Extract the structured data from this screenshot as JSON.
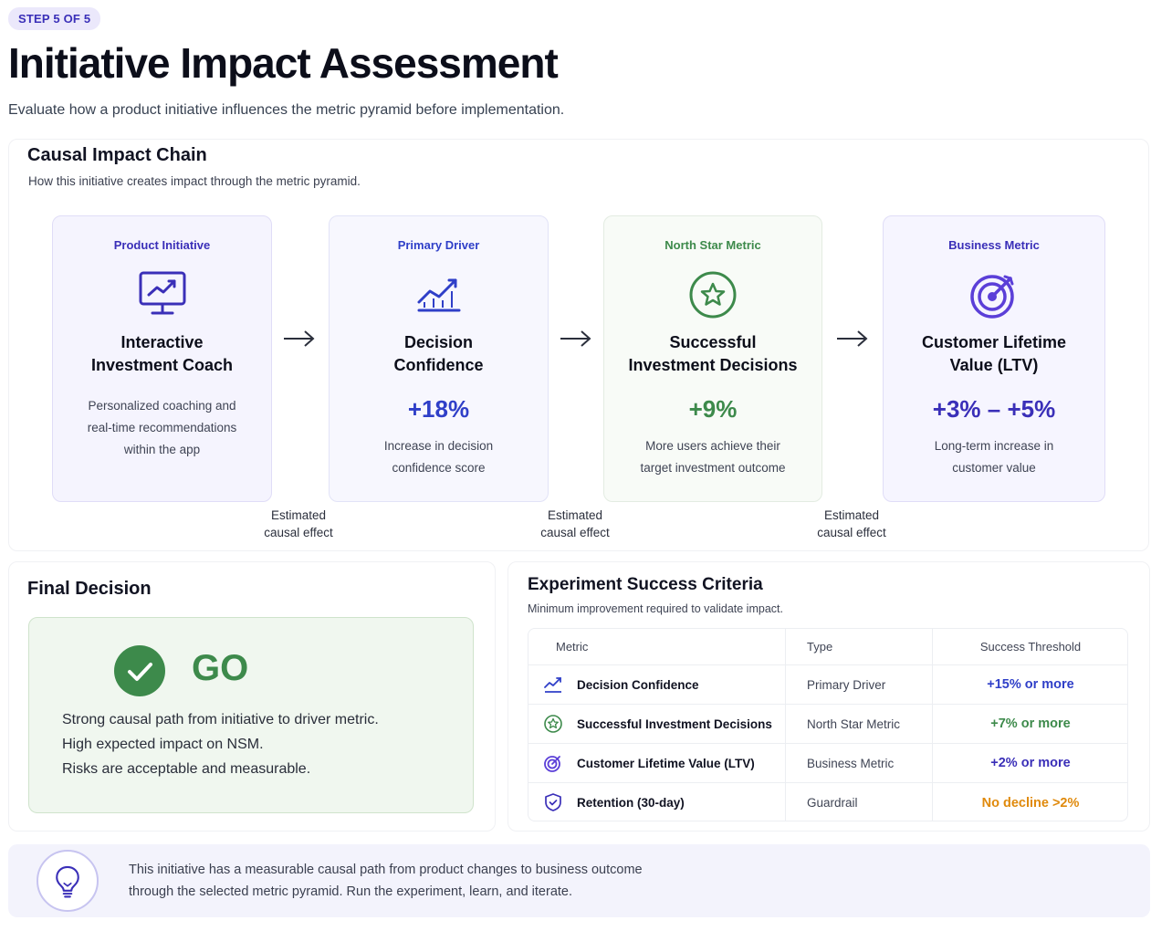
{
  "header": {
    "step_badge": "STEP 5 OF 5",
    "title": "Initiative Impact Assessment",
    "subtitle": "Evaluate how a product initiative influences the metric pyramid before implementation."
  },
  "chain": {
    "title": "Causal Impact Chain",
    "subtitle": "How this initiative creates impact through the metric pyramid.",
    "cards": [
      {
        "label": "Product Initiative",
        "icon": "monitor-chart-icon",
        "name_line1": "Interactive",
        "name_line2": "Investment Coach",
        "value": "",
        "desc_line1": "Personalized coaching and",
        "desc_line2": "real-time recommendations",
        "desc_line3": "within the app",
        "color": "#3a2fb8"
      },
      {
        "label": "Primary Driver",
        "icon": "trend-chart-icon",
        "name_line1": "Decision",
        "name_line2": "Confidence",
        "value": "+18%",
        "desc_line1": "Increase in decision",
        "desc_line2": "confidence score",
        "color": "#2f3fc8"
      },
      {
        "label": "North Star Metric",
        "icon": "star-circle-icon",
        "name_line1": "Successful",
        "name_line2": "Investment Decisions",
        "value": "+9%",
        "desc_line1": "More users achieve their",
        "desc_line2": "target investment outcome",
        "color": "#3d8a4b"
      },
      {
        "label": "Business Metric",
        "icon": "target-icon",
        "name_line1": "Customer Lifetime",
        "name_line2": "Value (LTV)",
        "value": "+3% – +5%",
        "desc_line1": "Long-term increase in",
        "desc_line2": "customer value",
        "color": "#3a2fb8"
      }
    ],
    "effect_line1": "Estimated",
    "effect_line2": "causal effect"
  },
  "decision": {
    "title": "Final Decision",
    "verdict": "GO",
    "line1": "Strong causal path from initiative to driver metric.",
    "line2": "High expected impact on NSM.",
    "line3": "Risks are acceptable and measurable.",
    "color": "#3d8a4b"
  },
  "criteria": {
    "title": "Experiment Success Criteria",
    "subtitle": "Minimum improvement required to validate impact.",
    "headers": [
      "Metric",
      "Type",
      "Success Threshold"
    ],
    "rows": [
      {
        "icon": "trend-chart-icon",
        "metric": "Decision Confidence",
        "type": "Primary Driver",
        "threshold": "+15% or more",
        "color": "#2f3fc8"
      },
      {
        "icon": "star-circle-icon",
        "metric": "Successful Investment Decisions",
        "type": "North Star Metric",
        "threshold": "+7% or more",
        "color": "#3d8a4b"
      },
      {
        "icon": "target-icon",
        "metric": "Customer Lifetime Value (LTV)",
        "type": "Business Metric",
        "threshold": "+2% or more",
        "color": "#3a2fb8"
      },
      {
        "icon": "shield-check-icon",
        "metric": "Retention (30-day)",
        "type": "Guardrail",
        "threshold": "No decline >2%",
        "color": "#e08a0c"
      }
    ]
  },
  "tip": {
    "icon": "lightbulb-icon",
    "line1": "This initiative has a measurable causal path from product changes to business outcome",
    "line2": "through the selected metric pyramid. Run the experiment, learn, and iterate."
  }
}
